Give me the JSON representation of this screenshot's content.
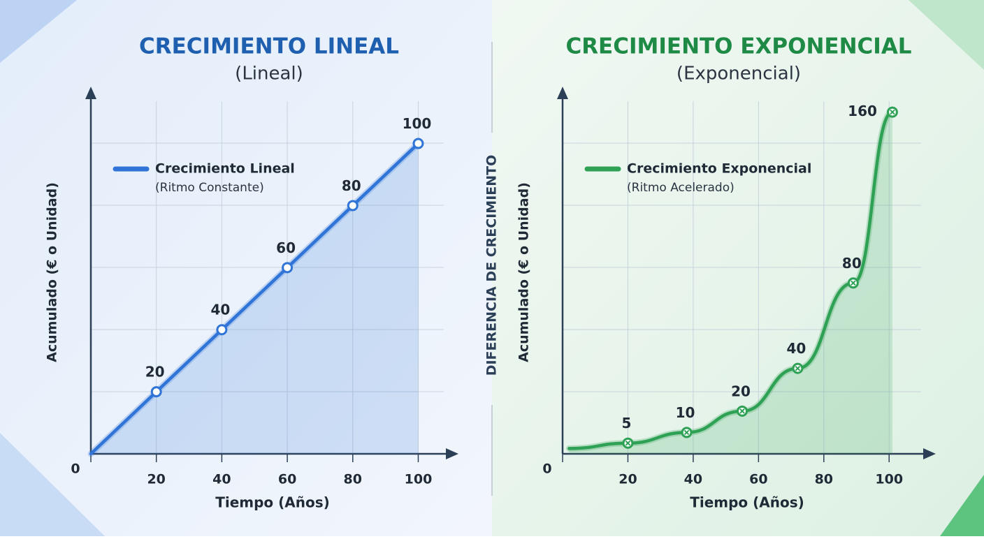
{
  "chart_data": [
    {
      "type": "line",
      "title": "CRECIMIENTO LINEAL",
      "subtitle": "(Lineal)",
      "x_label": "Tiempo (Años)",
      "y_label": "Acumulado (€ o Unidad)",
      "x": [
        0,
        20,
        40,
        60,
        80,
        100
      ],
      "xlim": [
        0,
        111
      ],
      "xticks": [
        0,
        20,
        40,
        60,
        80,
        100
      ],
      "ylim": [
        0,
        117
      ],
      "grid": true,
      "marker": "circle",
      "fill": true,
      "series": [
        {
          "name": "Crecimiento Lineal",
          "description": "(Ritmo Constante)",
          "color": "#2f74d6",
          "values": [
            0,
            20,
            40,
            60,
            80,
            100
          ]
        }
      ]
    },
    {
      "type": "line",
      "title": "CRECIMIENTO EXPONENCIAL",
      "subtitle": "(Exponencial)",
      "x_label": "Tiempo (Años)",
      "y_label": "Acumulado (€ o Unidad)",
      "x": [
        2,
        20,
        38,
        55,
        72,
        89,
        101
      ],
      "xlim": [
        0,
        113
      ],
      "xticks": [
        0,
        20,
        40,
        60,
        80,
        100
      ],
      "ylim": [
        0,
        170
      ],
      "grid": true,
      "marker": "cross",
      "fill": true,
      "series": [
        {
          "name": "Crecimiento Exponencial",
          "description": "(Ritmo Acelerado)",
          "color": "#2ea155",
          "values": [
            2.5,
            5,
            10,
            20,
            40,
            80,
            160
          ]
        }
      ]
    }
  ],
  "divider_label": "DIFERENCIA DE CRECIMIENTO"
}
